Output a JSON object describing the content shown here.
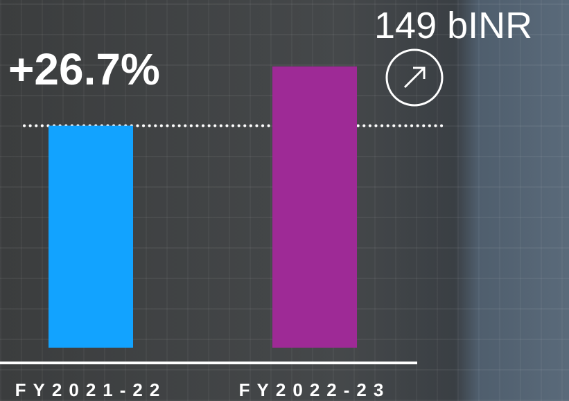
{
  "chart_data": {
    "type": "bar",
    "annotation": "+26.7%",
    "categories": [
      "FY2021-22",
      "FY2022-23"
    ],
    "values": [
      117.6,
      149
    ],
    "value_labels": [
      null,
      "149 bINR"
    ],
    "colors": [
      "#12a3ff",
      "#9e2a96"
    ],
    "ylim": [
      0,
      160
    ]
  }
}
